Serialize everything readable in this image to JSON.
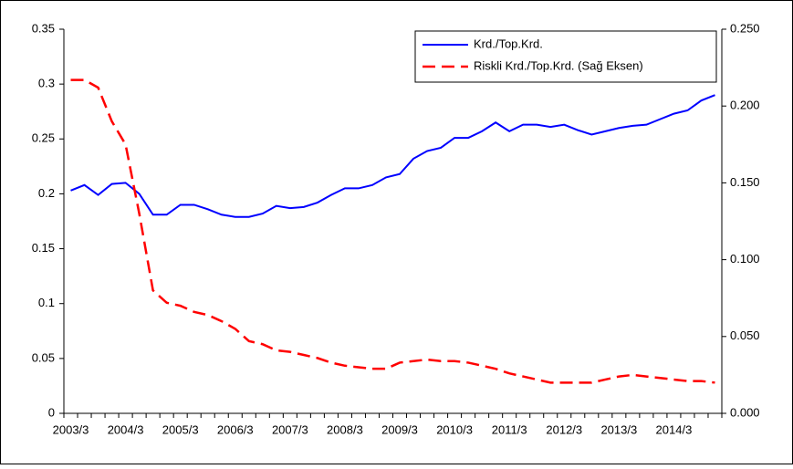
{
  "chart_data": {
    "type": "line",
    "categories": [
      "2003/3",
      null,
      null,
      null,
      "2004/3",
      null,
      null,
      null,
      "2005/3",
      null,
      null,
      null,
      "2006/3",
      null,
      null,
      null,
      "2007/3",
      null,
      null,
      null,
      "2008/3",
      null,
      null,
      null,
      "2009/3",
      null,
      null,
      null,
      "2010/3",
      null,
      null,
      null,
      "2011/3",
      null,
      null,
      null,
      "2012/3",
      null,
      null,
      null,
      "2013/3",
      null,
      null,
      null,
      "2014/3",
      null,
      null,
      null
    ],
    "series": [
      {
        "name": "Krd./Top.Krd.",
        "color": "#0000ff",
        "dash": false,
        "values": [
          0.203,
          0.208,
          0.199,
          0.209,
          0.21,
          0.2,
          0.181,
          0.181,
          0.19,
          0.19,
          0.186,
          0.181,
          0.179,
          0.179,
          0.182,
          0.189,
          0.187,
          0.188,
          0.192,
          0.199,
          0.205,
          0.205,
          0.208,
          0.215,
          0.218,
          0.232,
          0.239,
          0.242,
          0.251,
          0.251,
          0.257,
          0.265,
          0.257,
          0.263,
          0.263,
          0.261,
          0.263,
          0.258,
          0.254,
          0.257,
          0.26,
          0.262,
          0.263,
          0.268,
          0.273,
          0.276,
          0.285,
          0.29
        ]
      },
      {
        "name": "Riskli Krd./Top.Krd. (Sağ Eksen)",
        "color": "#ff0000",
        "dash": true,
        "axis": "y2",
        "values": [
          0.217,
          0.217,
          0.212,
          0.19,
          0.175,
          0.13,
          0.08,
          0.072,
          0.07,
          0.066,
          0.064,
          0.06,
          0.055,
          0.047,
          0.045,
          0.041,
          0.04,
          0.038,
          0.036,
          0.033,
          0.031,
          0.03,
          0.029,
          0.029,
          0.033,
          0.034,
          0.035,
          0.034,
          0.034,
          0.033,
          0.031,
          0.029,
          0.026,
          0.024,
          0.022,
          0.02,
          0.02,
          0.02,
          0.02,
          0.022,
          0.024,
          0.025,
          0.024,
          0.023,
          0.022,
          0.021,
          0.021,
          0.02
        ]
      }
    ],
    "ylim": [
      0,
      0.35
    ],
    "yticks": [
      0,
      0.05,
      0.1,
      0.15,
      0.2,
      0.25,
      0.3,
      0.35
    ],
    "y2lim": [
      0,
      0.25
    ],
    "y2ticks": [
      {
        "value": 0,
        "label": "0.000"
      },
      {
        "value": 0.05,
        "label": "0.050"
      },
      {
        "value": 0.1,
        "label": "0.100"
      },
      {
        "value": 0.15,
        "label": "0.150"
      },
      {
        "value": 0.2,
        "label": "0.200"
      },
      {
        "value": 0.25,
        "label": "0.250"
      }
    ],
    "legend": "top-right"
  }
}
